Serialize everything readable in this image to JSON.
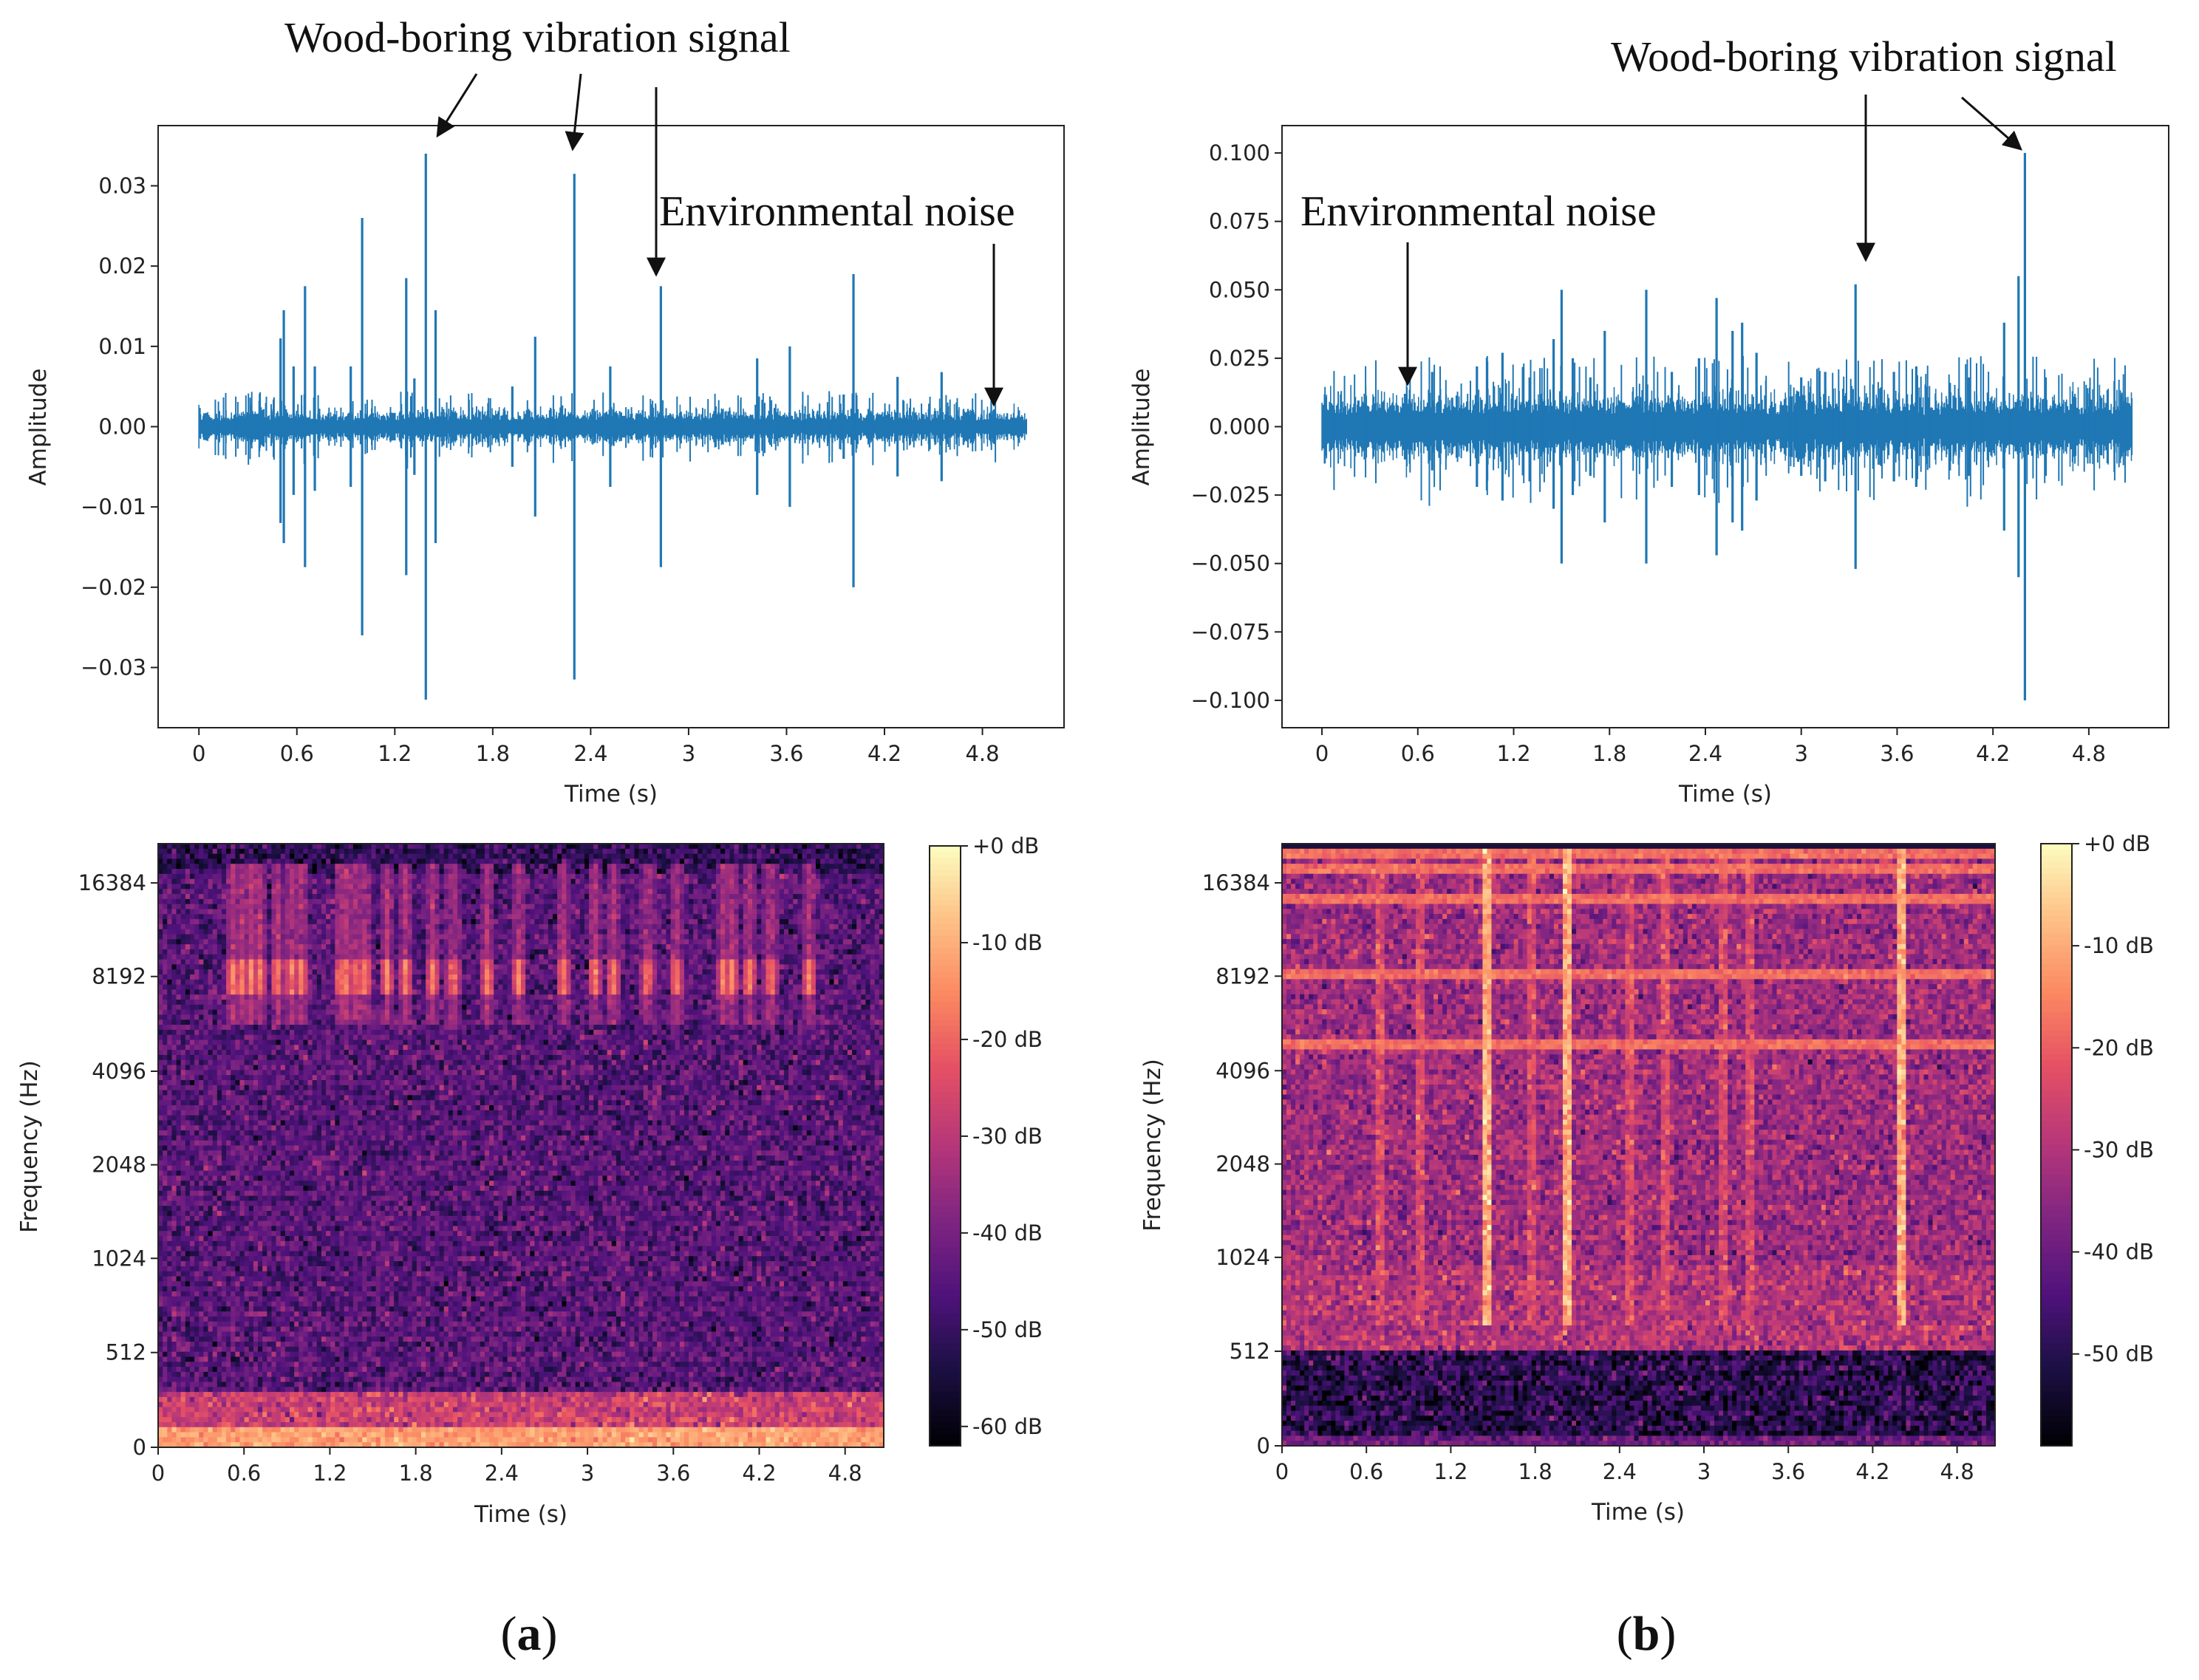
{
  "colors": {
    "waveform": "#1f77b4",
    "colormap": "magma"
  },
  "panel_labels": [
    "(a)",
    "(b)"
  ],
  "chart_data": [
    {
      "id": "waveform-a",
      "type": "line",
      "xlabel": "Time (s)",
      "ylabel": "Amplitude",
      "xlim": [
        -0.25,
        5.3
      ],
      "ylim": [
        -0.0375,
        0.0375
      ],
      "xticks": [
        "0",
        "0.6",
        "1.2",
        "1.8",
        "2.4",
        "3",
        "3.6",
        "4.2",
        "4.8"
      ],
      "xtick_values": [
        0,
        0.6,
        1.2,
        1.8,
        2.4,
        3.0,
        3.6,
        4.2,
        4.8
      ],
      "yticks": [
        "0.03",
        "0.02",
        "0.01",
        "0.00",
        "−0.01",
        "−0.02",
        "−0.03"
      ],
      "ytick_values": [
        0.03,
        0.02,
        0.01,
        0.0,
        -0.01,
        -0.02,
        -0.03
      ],
      "duration": 5.07,
      "noise_level": 0.0012,
      "spikes": [
        {
          "t": 0.52,
          "up": 0.0145,
          "down": -0.0145
        },
        {
          "t": 0.5,
          "up": 0.011,
          "down": -0.012
        },
        {
          "t": 0.58,
          "up": 0.0075,
          "down": -0.0085
        },
        {
          "t": 0.65,
          "up": 0.0175,
          "down": -0.0175
        },
        {
          "t": 0.71,
          "up": 0.0075,
          "down": -0.008
        },
        {
          "t": 1.0,
          "up": 0.026,
          "down": -0.026
        },
        {
          "t": 0.93,
          "up": 0.0075,
          "down": -0.0075
        },
        {
          "t": 1.27,
          "up": 0.0185,
          "down": -0.0185
        },
        {
          "t": 1.39,
          "up": 0.034,
          "down": -0.034
        },
        {
          "t": 1.45,
          "up": 0.0145,
          "down": -0.0145
        },
        {
          "t": 1.32,
          "up": 0.006,
          "down": -0.006
        },
        {
          "t": 1.92,
          "up": 0.005,
          "down": -0.005
        },
        {
          "t": 2.06,
          "up": 0.0112,
          "down": -0.0112
        },
        {
          "t": 2.3,
          "up": 0.0315,
          "down": -0.0315
        },
        {
          "t": 2.52,
          "up": 0.0075,
          "down": -0.0075
        },
        {
          "t": 2.83,
          "up": 0.0175,
          "down": -0.0175
        },
        {
          "t": 3.42,
          "up": 0.0085,
          "down": -0.0085
        },
        {
          "t": 3.62,
          "up": 0.01,
          "down": -0.01
        },
        {
          "t": 4.01,
          "up": 0.019,
          "down": -0.02
        },
        {
          "t": 3.95,
          "up": 0.004,
          "down": -0.004
        },
        {
          "t": 4.28,
          "up": 0.0062,
          "down": -0.0062
        },
        {
          "t": 4.55,
          "up": 0.0068,
          "down": -0.0068
        }
      ],
      "annotations": [
        {
          "text": "Wood-boring vibration signal"
        },
        {
          "text": "Environmental noise"
        }
      ]
    },
    {
      "id": "spectrogram-a",
      "type": "heatmap",
      "xlabel": "Time (s)",
      "ylabel": "Frequency (Hz)",
      "xticks": [
        "0",
        "0.6",
        "1.2",
        "1.8",
        "2.4",
        "3",
        "3.6",
        "4.2",
        "4.8"
      ],
      "xtick_values": [
        0,
        0.6,
        1.2,
        1.8,
        2.4,
        3.0,
        3.6,
        4.2,
        4.8
      ],
      "yticks": [
        "16384",
        "8192",
        "4096",
        "2048",
        "1024",
        "512",
        "0"
      ],
      "colorbar_ticks": [
        "+0 dB",
        "-10 dB",
        "-20 dB",
        "-30 dB",
        "-40 dB",
        "-50 dB",
        "-60 dB"
      ],
      "colorbar_range": [
        -62,
        0
      ],
      "base_level_db": -45,
      "events_t": [
        0.52,
        0.58,
        0.65,
        0.71,
        0.83,
        0.93,
        1.0,
        1.27,
        1.32,
        1.39,
        1.45,
        1.6,
        1.73,
        1.92,
        2.06,
        2.3,
        2.52,
        2.83,
        3.05,
        3.18,
        3.42,
        3.62,
        3.95,
        4.01,
        4.13,
        4.28,
        4.55
      ]
    },
    {
      "id": "waveform-b",
      "type": "line",
      "xlabel": "Time (s)",
      "ylabel": "Amplitude",
      "xlim": [
        -0.25,
        5.3
      ],
      "ylim": [
        -0.11,
        0.11
      ],
      "xticks": [
        "0",
        "0.6",
        "1.2",
        "1.8",
        "2.4",
        "3",
        "3.6",
        "4.2",
        "4.8"
      ],
      "xtick_values": [
        0,
        0.6,
        1.2,
        1.8,
        2.4,
        3.0,
        3.6,
        4.2,
        4.8
      ],
      "yticks": [
        "0.100",
        "0.075",
        "0.050",
        "0.025",
        "0.000",
        "−0.025",
        "−0.050",
        "−0.075",
        "−0.100"
      ],
      "ytick_values": [
        0.1,
        0.075,
        0.05,
        0.025,
        0.0,
        -0.025,
        -0.05,
        -0.075,
        -0.1
      ],
      "duration": 5.07,
      "noise_level": 0.007,
      "spikes": [
        {
          "t": 0.52,
          "up": 0.012,
          "down": -0.012
        },
        {
          "t": 0.69,
          "up": 0.02,
          "down": -0.016
        },
        {
          "t": 0.97,
          "up": 0.022,
          "down": -0.022
        },
        {
          "t": 1.13,
          "up": 0.027,
          "down": -0.027
        },
        {
          "t": 1.3,
          "up": 0.018,
          "down": -0.02
        },
        {
          "t": 1.45,
          "up": 0.032,
          "down": -0.03
        },
        {
          "t": 1.5,
          "up": 0.05,
          "down": -0.05
        },
        {
          "t": 1.57,
          "up": 0.025,
          "down": -0.025
        },
        {
          "t": 1.68,
          "up": 0.018,
          "down": -0.018
        },
        {
          "t": 1.77,
          "up": 0.035,
          "down": -0.035
        },
        {
          "t": 2.03,
          "up": 0.05,
          "down": -0.05
        },
        {
          "t": 2.19,
          "up": 0.02,
          "down": -0.022
        },
        {
          "t": 2.36,
          "up": 0.025,
          "down": -0.025
        },
        {
          "t": 2.47,
          "up": 0.047,
          "down": -0.047
        },
        {
          "t": 2.57,
          "up": 0.035,
          "down": -0.035
        },
        {
          "t": 2.63,
          "up": 0.038,
          "down": -0.038
        },
        {
          "t": 2.72,
          "up": 0.027,
          "down": -0.027
        },
        {
          "t": 3.0,
          "up": 0.018,
          "down": -0.018
        },
        {
          "t": 3.15,
          "up": 0.02,
          "down": -0.02
        },
        {
          "t": 3.34,
          "up": 0.052,
          "down": -0.052
        },
        {
          "t": 3.58,
          "up": 0.02,
          "down": -0.02
        },
        {
          "t": 3.72,
          "up": 0.022,
          "down": -0.022
        },
        {
          "t": 3.93,
          "up": 0.016,
          "down": -0.016
        },
        {
          "t": 4.05,
          "up": 0.018,
          "down": -0.018
        },
        {
          "t": 4.27,
          "up": 0.038,
          "down": -0.038
        },
        {
          "t": 4.36,
          "up": 0.055,
          "down": -0.055
        },
        {
          "t": 4.4,
          "up": 0.1,
          "down": -0.1
        },
        {
          "t": 4.53,
          "up": 0.018,
          "down": -0.018
        }
      ],
      "annotations": [
        {
          "text": "Wood-boring vibration signal"
        },
        {
          "text": "Environmental noise"
        }
      ]
    },
    {
      "id": "spectrogram-b",
      "type": "heatmap",
      "xlabel": "Time (s)",
      "ylabel": "Frequency (Hz)",
      "xticks": [
        "0",
        "0.6",
        "1.2",
        "1.8",
        "2.4",
        "3",
        "3.6",
        "4.2",
        "4.8"
      ],
      "xtick_values": [
        0,
        0.6,
        1.2,
        1.8,
        2.4,
        3.0,
        3.6,
        4.2,
        4.8
      ],
      "yticks": [
        "16384",
        "8192",
        "4096",
        "2048",
        "1024",
        "512",
        "0"
      ],
      "colorbar_ticks": [
        "+0 dB",
        "-10 dB",
        "-20 dB",
        "-30 dB",
        "-40 dB",
        "-50 dB"
      ],
      "colorbar_range": [
        -59,
        0
      ],
      "base_level_db": -33,
      "hum_bands_hz": [
        5000,
        10000,
        15000,
        17000,
        18000
      ],
      "events_t": [
        1.45,
        2.03,
        4.4,
        1.77,
        3.34,
        2.47,
        2.72,
        3.15,
        0.97,
        0.69
      ]
    }
  ]
}
